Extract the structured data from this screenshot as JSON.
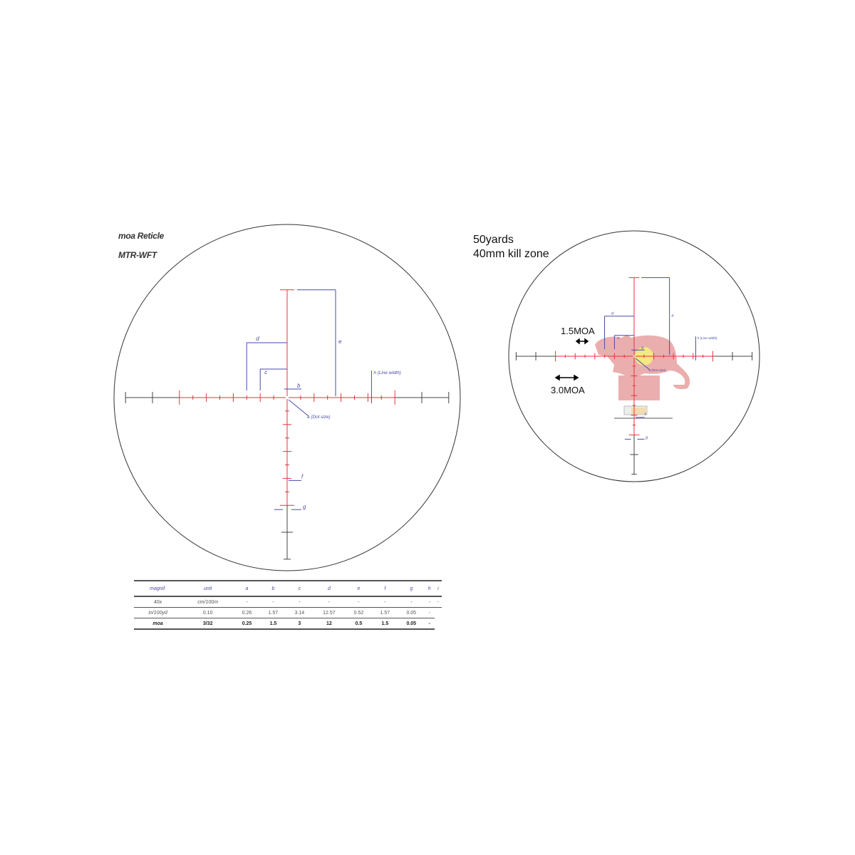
{
  "left_panel": {
    "title1": "moa Reticle",
    "title2": "MTR-WFT",
    "labels": {
      "a": "a (Dot size)",
      "b": "b",
      "c": "c",
      "d": "d",
      "e": "e",
      "f": "f",
      "g": "g",
      "h": "h (Line width)"
    }
  },
  "right_panel": {
    "title1": "50yards",
    "title2": "40mm kill zone",
    "moa1": "1.5MOA",
    "moa2": "3.0MOA"
  },
  "table": {
    "headers": [
      "magnif.",
      "unit",
      "a",
      "b",
      "c",
      "d",
      "e",
      "f",
      "g",
      "h",
      "i"
    ],
    "magnif": "40x",
    "rows": [
      {
        "unit": "cm/100m",
        "values": [
          "-",
          "-",
          "-",
          "-",
          "-",
          "-",
          "-",
          "-",
          "-"
        ]
      },
      {
        "unit": "in/100yd",
        "values": [
          "0.10",
          "0.26",
          "1.57",
          "3.14",
          "12.57",
          "0.52",
          "1.57",
          "0.05",
          "-"
        ]
      },
      {
        "unit": "moa",
        "values": [
          "3/32",
          "0.25",
          "1.5",
          "3",
          "12",
          "0.5",
          "1.5",
          "0.05",
          "-"
        ]
      }
    ]
  },
  "colors": {
    "reticle_red": "#e8323c",
    "reticle_black": "#444444",
    "dimension_blue": "#4a4aa8",
    "target": "#e8a0a0",
    "kill_zone": "#f4f27a"
  }
}
